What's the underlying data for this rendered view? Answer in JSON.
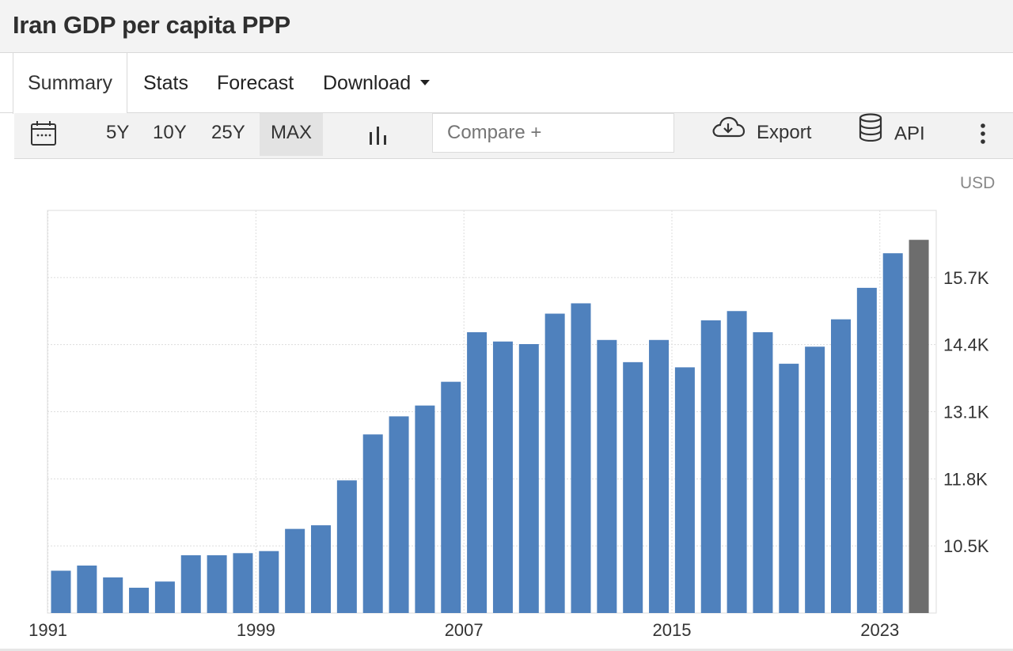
{
  "page": {
    "title": "Iran GDP per capita PPP"
  },
  "tabs": [
    {
      "label": "Summary",
      "active": true
    },
    {
      "label": "Stats",
      "active": false
    },
    {
      "label": "Forecast",
      "active": false
    },
    {
      "label": "Download",
      "active": false,
      "icon": "caret-down-icon"
    }
  ],
  "toolbar": {
    "calendar_icon": "calendar-icon",
    "ranges": [
      {
        "label": "5Y",
        "active": false
      },
      {
        "label": "10Y",
        "active": false
      },
      {
        "label": "25Y",
        "active": false
      },
      {
        "label": "MAX",
        "active": true
      }
    ],
    "chart_type_icon": "bar-chart-icon",
    "compare_placeholder": "Compare +",
    "export_label": "Export",
    "export_icon": "cloud-download-icon",
    "api_label": "API",
    "api_icon": "database-icon",
    "more_icon": "vertical-dots-icon"
  },
  "chart_data": {
    "type": "bar",
    "unit": "USD",
    "x": [
      1991,
      1992,
      1993,
      1994,
      1995,
      1996,
      1997,
      1998,
      1999,
      2000,
      2001,
      2002,
      2003,
      2004,
      2005,
      2006,
      2007,
      2008,
      2009,
      2010,
      2011,
      2012,
      2013,
      2014,
      2015,
      2016,
      2017,
      2018,
      2019,
      2020,
      2021,
      2022,
      2023,
      2024
    ],
    "values": [
      10.02,
      10.12,
      9.89,
      9.69,
      9.81,
      10.32,
      10.32,
      10.36,
      10.4,
      10.83,
      10.9,
      11.77,
      12.66,
      13.01,
      13.22,
      13.68,
      14.64,
      14.46,
      14.41,
      15.0,
      15.2,
      14.49,
      14.06,
      14.49,
      13.96,
      14.87,
      15.05,
      14.64,
      14.03,
      14.36,
      14.89,
      15.5,
      16.17,
      16.43
    ],
    "highlight_last": true,
    "colors": {
      "bar": "#4f81bd",
      "highlight": "#6d6d6d",
      "grid": "#dddddd"
    },
    "x_tick_labels": [
      "1991",
      "1999",
      "2007",
      "2015",
      "2023"
    ],
    "y_ticks": [
      10.5,
      11.8,
      13.1,
      14.4,
      15.7
    ],
    "y_tick_labels": [
      "10.5K",
      "11.8K",
      "13.1K",
      "14.4K",
      "15.7K"
    ],
    "ylim": [
      9.2,
      17.0
    ],
    "y_axis_position": "right",
    "grid": true
  }
}
